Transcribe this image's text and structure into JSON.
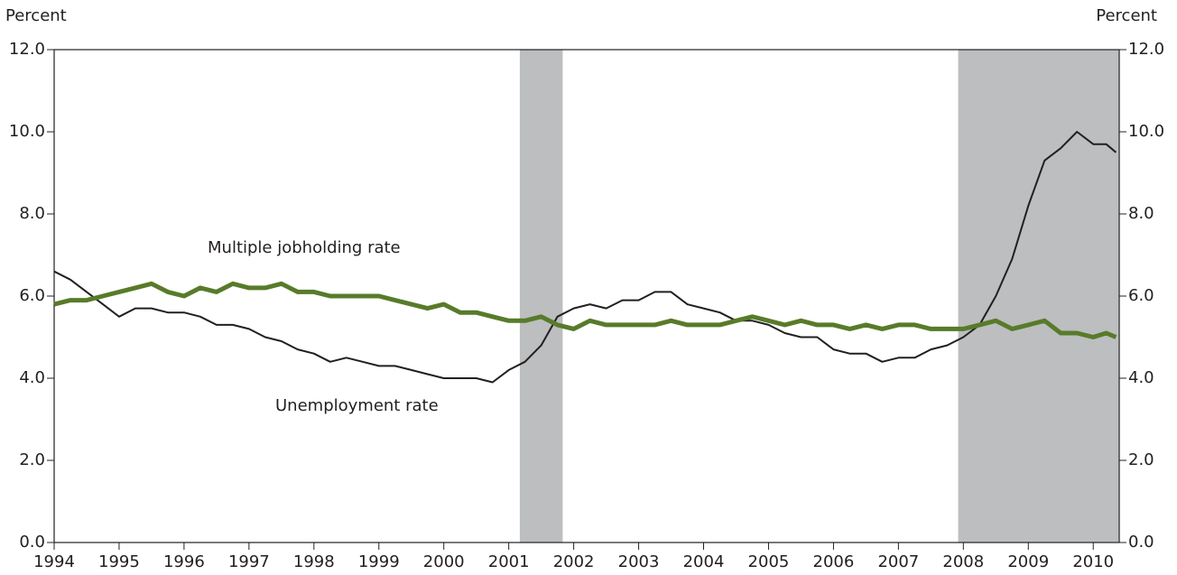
{
  "chart_data": {
    "type": "line",
    "y_label": "Percent",
    "y2_label": "Percent",
    "x": [
      1994,
      1994.25,
      1994.5,
      1994.75,
      1995,
      1995.25,
      1995.5,
      1995.75,
      1996,
      1996.25,
      1996.5,
      1996.75,
      1997,
      1997.25,
      1997.5,
      1997.75,
      1998,
      1998.25,
      1998.5,
      1998.75,
      1999,
      1999.25,
      1999.5,
      1999.75,
      2000,
      2000.25,
      2000.5,
      2000.75,
      2001,
      2001.25,
      2001.5,
      2001.75,
      2002,
      2002.25,
      2002.5,
      2002.75,
      2003,
      2003.25,
      2003.5,
      2003.75,
      2004,
      2004.25,
      2004.5,
      2004.75,
      2005,
      2005.25,
      2005.5,
      2005.75,
      2006,
      2006.25,
      2006.5,
      2006.75,
      2007,
      2007.25,
      2007.5,
      2007.75,
      2008,
      2008.25,
      2008.5,
      2008.75,
      2009,
      2009.25,
      2009.5,
      2009.75,
      2010,
      2010.2,
      2010.35
    ],
    "series": [
      {
        "name": "Unemployment rate",
        "color": "#231f20",
        "values": [
          6.6,
          6.4,
          6.1,
          5.8,
          5.5,
          5.7,
          5.7,
          5.6,
          5.6,
          5.5,
          5.3,
          5.3,
          5.2,
          5.0,
          4.9,
          4.7,
          4.6,
          4.4,
          4.5,
          4.4,
          4.3,
          4.3,
          4.2,
          4.1,
          4.0,
          4.0,
          4.0,
          3.9,
          4.2,
          4.4,
          4.8,
          5.5,
          5.7,
          5.8,
          5.7,
          5.9,
          5.9,
          6.1,
          6.1,
          5.8,
          5.7,
          5.6,
          5.4,
          5.4,
          5.3,
          5.1,
          5.0,
          5.0,
          4.7,
          4.6,
          4.6,
          4.4,
          4.5,
          4.5,
          4.7,
          4.8,
          5.0,
          5.3,
          6.0,
          6.9,
          8.2,
          9.3,
          9.6,
          10.0,
          9.7,
          9.7,
          9.5
        ]
      },
      {
        "name": "Multiple jobholding rate",
        "color": "#587b2a",
        "values": [
          5.8,
          5.9,
          5.9,
          6.0,
          6.1,
          6.2,
          6.3,
          6.1,
          6.0,
          6.2,
          6.1,
          6.3,
          6.2,
          6.2,
          6.3,
          6.1,
          6.1,
          6.0,
          6.0,
          6.0,
          6.0,
          5.9,
          5.8,
          5.7,
          5.8,
          5.6,
          5.6,
          5.5,
          5.4,
          5.4,
          5.5,
          5.3,
          5.2,
          5.4,
          5.3,
          5.3,
          5.3,
          5.3,
          5.4,
          5.3,
          5.3,
          5.3,
          5.4,
          5.5,
          5.4,
          5.3,
          5.4,
          5.3,
          5.3,
          5.2,
          5.3,
          5.2,
          5.3,
          5.3,
          5.2,
          5.2,
          5.2,
          5.3,
          5.4,
          5.2,
          5.3,
          5.4,
          5.1,
          5.1,
          5.0,
          5.1,
          5.0
        ]
      }
    ],
    "recessions": [
      [
        2001.17,
        2001.83
      ],
      [
        2007.92,
        2010.4
      ]
    ],
    "recession_color": "#bcbec0",
    "xlim": [
      1994,
      2010.4
    ],
    "xticks": [
      1994,
      1995,
      1996,
      1997,
      1998,
      1999,
      2000,
      2001,
      2002,
      2003,
      2004,
      2005,
      2006,
      2007,
      2008,
      2009,
      2010
    ],
    "ylim": [
      0,
      12
    ],
    "yticks": [
      {
        "value": 0,
        "label": "0.0"
      },
      {
        "value": 2,
        "label": "2.0"
      },
      {
        "value": 4,
        "label": "4.0"
      },
      {
        "value": 6,
        "label": "6.0"
      },
      {
        "value": 8,
        "label": "8.0"
      },
      {
        "value": 10,
        "label": "10.0"
      },
      {
        "value": 12,
        "label": "12.0"
      }
    ],
    "y2lim": [
      0,
      12
    ],
    "y2ticks": [
      {
        "value": 0,
        "label": "0.0"
      },
      {
        "value": 2,
        "label": "2.0"
      },
      {
        "value": 4,
        "label": "4.0"
      },
      {
        "value": 6,
        "label": "6.0"
      },
      {
        "value": 8,
        "label": "8.0"
      },
      {
        "value": 10,
        "label": "10.0"
      },
      {
        "value": 12,
        "label": "12.0"
      }
    ],
    "grid": false
  }
}
